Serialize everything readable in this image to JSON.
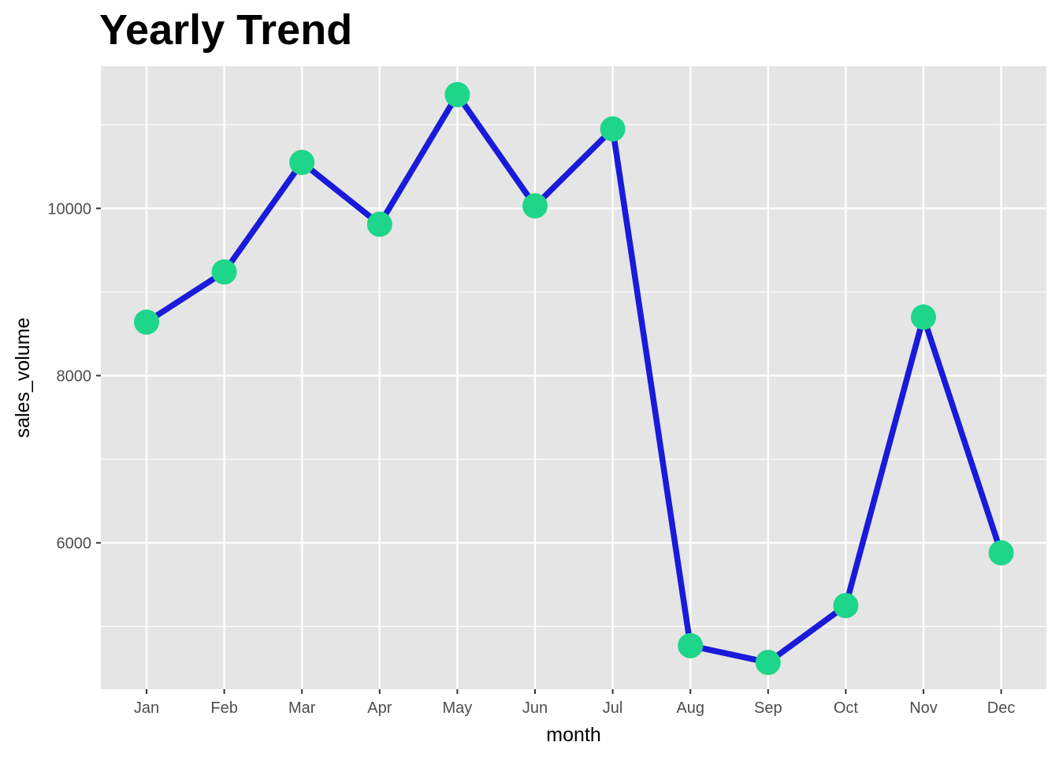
{
  "chart_data": {
    "type": "line",
    "title": "Yearly Trend",
    "xlabel": "month",
    "ylabel": "sales_volume",
    "categories": [
      "Jan",
      "Feb",
      "Mar",
      "Apr",
      "May",
      "Jun",
      "Jul",
      "Aug",
      "Sep",
      "Oct",
      "Nov",
      "Dec"
    ],
    "series": [
      {
        "values": [
          8640,
          9240,
          10550,
          9810,
          11360,
          10030,
          10950,
          4770,
          4570,
          5250,
          8700,
          5880
        ]
      }
    ],
    "y_ticks": [
      6000,
      8000,
      10000
    ],
    "ylim": [
      4250,
      11700
    ],
    "grid": true,
    "legend": "none",
    "colors": {
      "line": "#1a1adb",
      "points": "#1ed68a",
      "panel_background": "#e5e5e5",
      "gridline": "#ffffff"
    }
  }
}
